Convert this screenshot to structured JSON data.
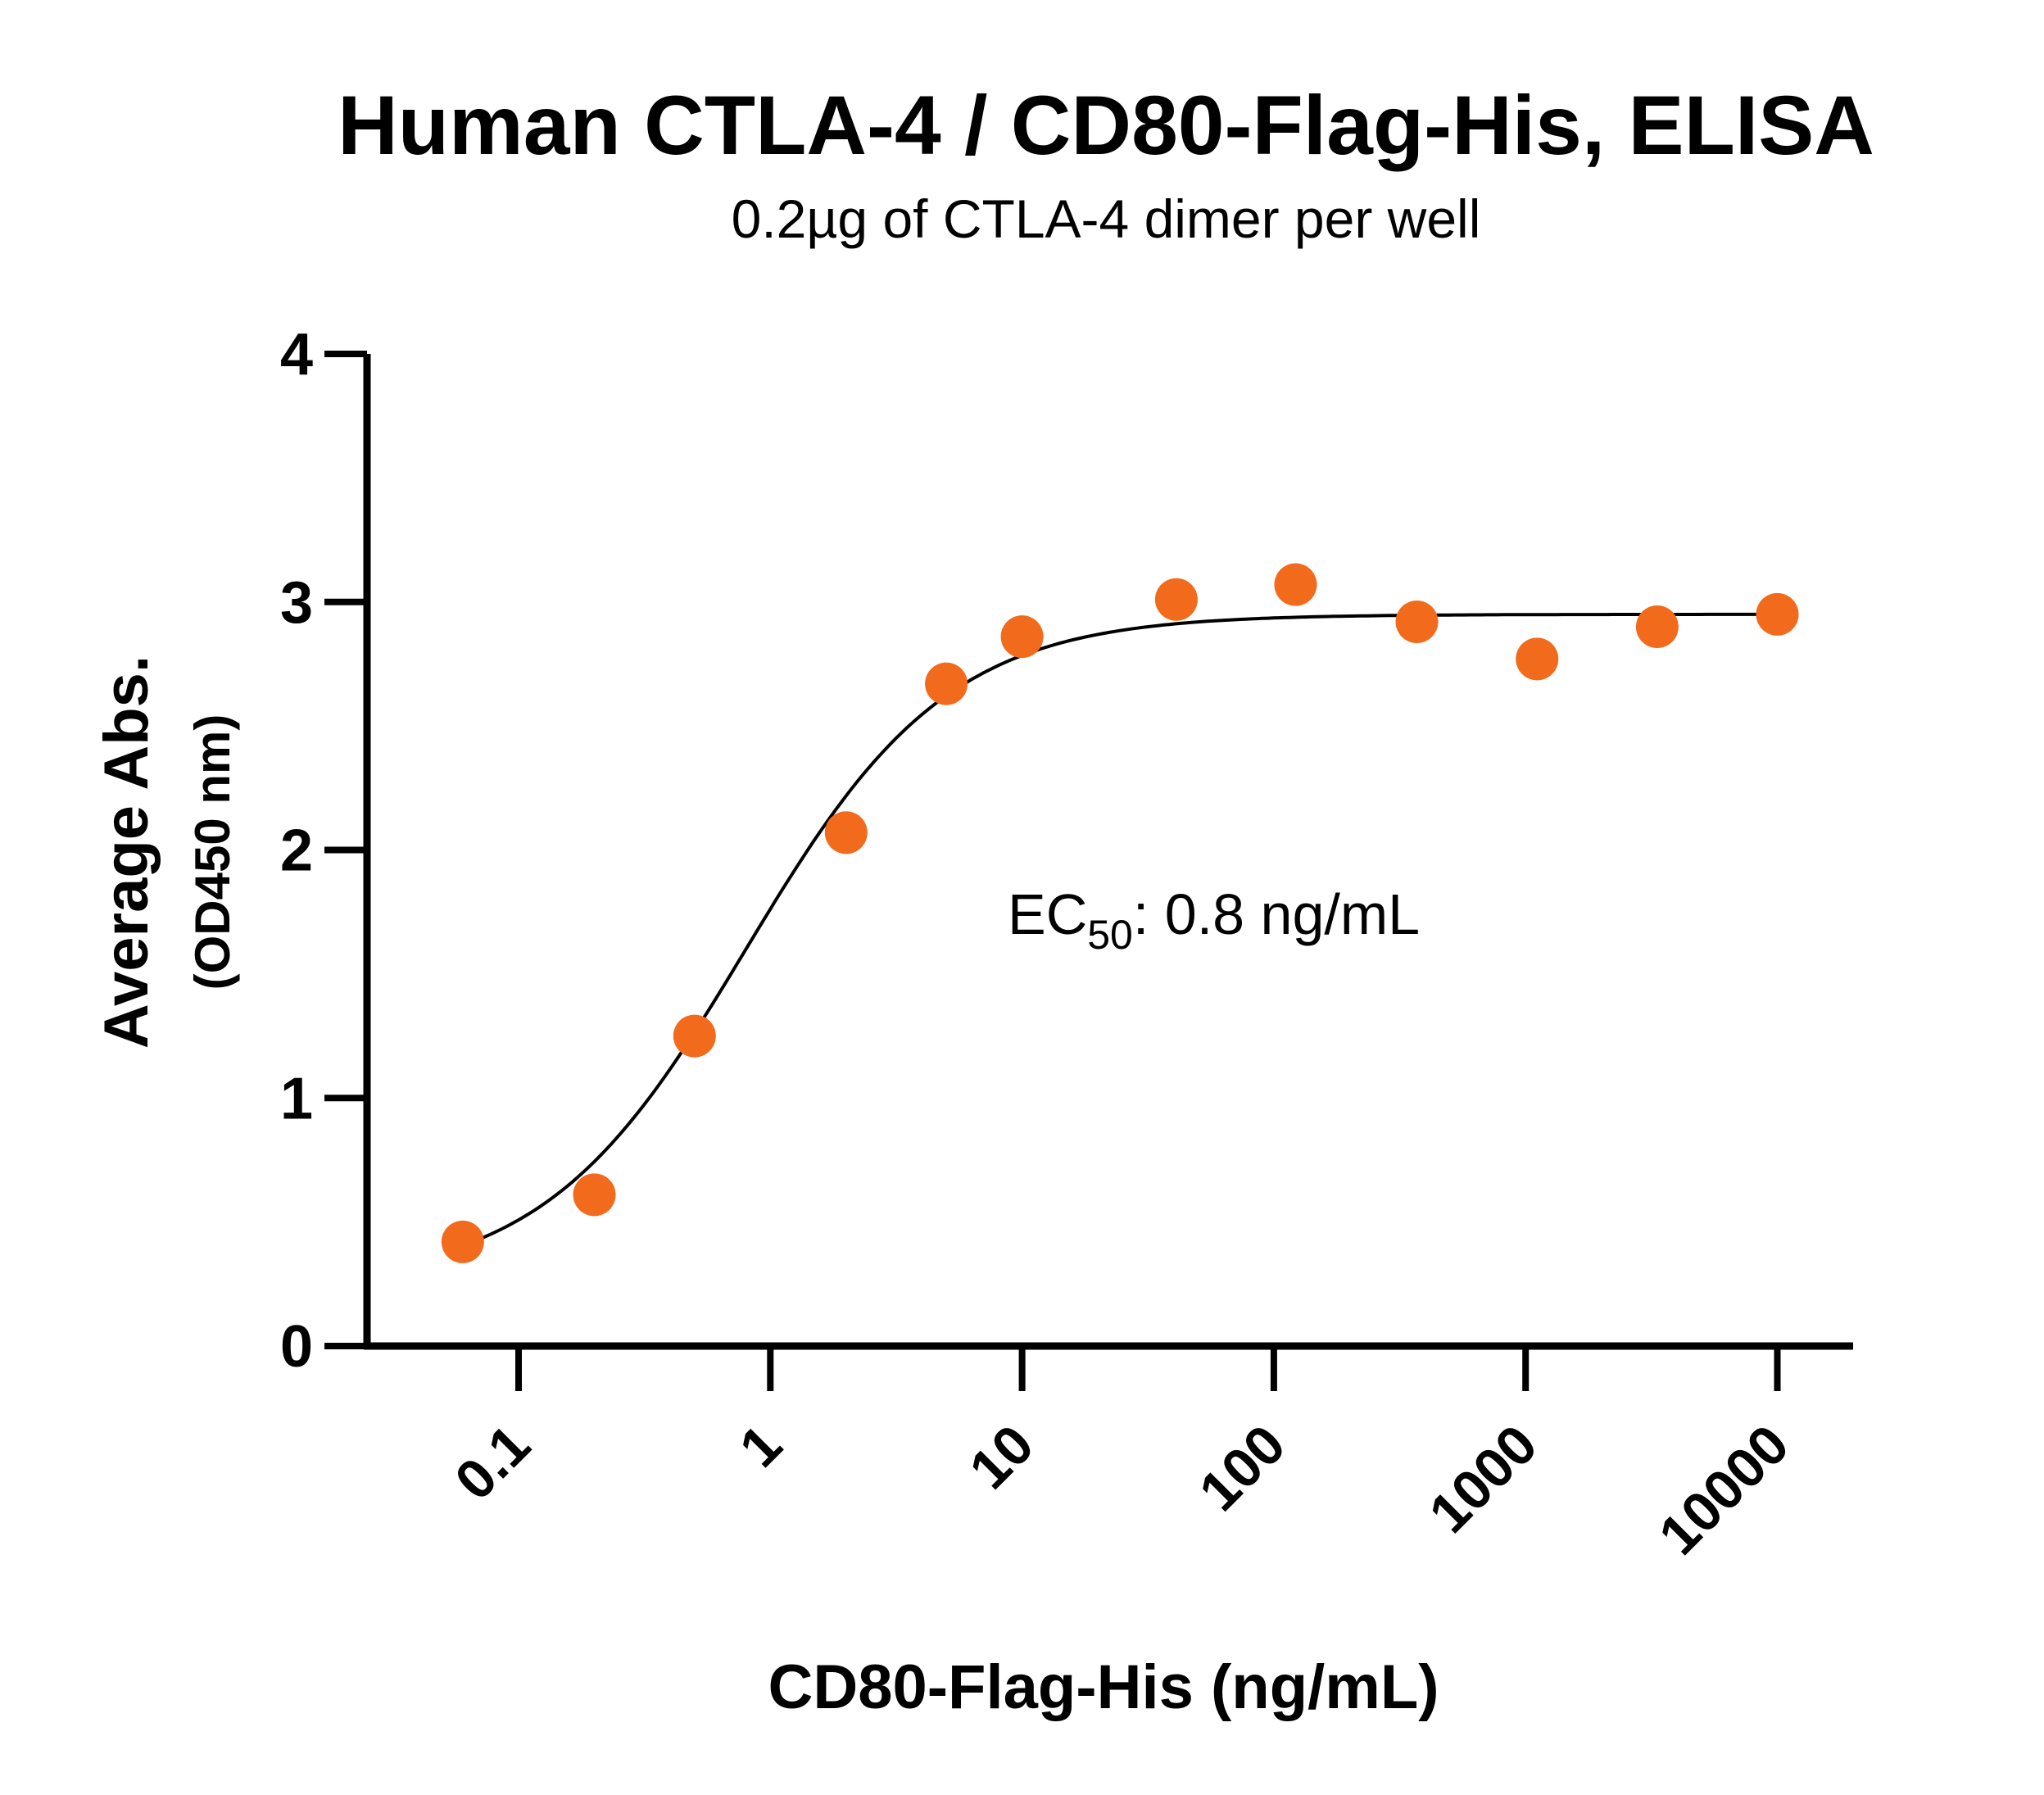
{
  "chart_data": {
    "type": "scatter",
    "title": "Human CTLA-4 / CD80-Flag-His, ELISA",
    "subtitle": "0.2µg of CTLA-4 dimer per well",
    "xlabel": "CD80-Flag-His (ng/mL)",
    "ylabel": "Average Abs.",
    "ylabel_sub": "(OD450 nm)",
    "xscale": "log",
    "xlim": [
      0.025,
      20000
    ],
    "ylim": [
      0,
      4
    ],
    "x_ticks": [
      "0.1",
      "1",
      "10",
      "100",
      "1000",
      "10000"
    ],
    "y_ticks": [
      "0",
      "1",
      "2",
      "3",
      "4"
    ],
    "grid": false,
    "point_color": "#f26b1d",
    "annotation": {
      "prefix": "EC",
      "subscript": "50",
      "suffix": ": 0.8 ng/mL"
    },
    "series": [
      {
        "x": [
          0.06,
          0.2,
          0.5,
          2,
          5,
          10,
          41,
          122,
          370,
          1111,
          3333,
          10000
        ],
        "y": [
          0.42,
          0.61,
          1.25,
          2.07,
          2.67,
          2.86,
          3.01,
          3.07,
          2.92,
          2.77,
          2.9,
          2.95
        ]
      }
    ],
    "fit": {
      "model": "4PL",
      "bottom": 0.25,
      "top": 2.95,
      "ec50": 0.8,
      "hill": 1.08
    }
  }
}
